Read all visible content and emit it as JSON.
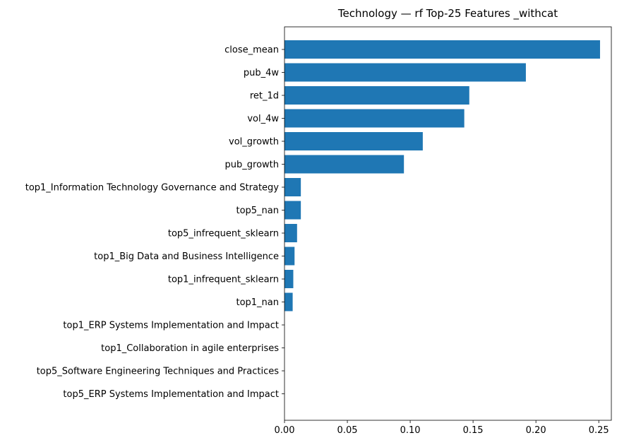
{
  "chart_data": {
    "type": "bar",
    "orientation": "horizontal",
    "title": "Technology — rf Top-25 Features _withcat",
    "xlabel": "",
    "ylabel": "",
    "xlim": [
      0,
      0.26
    ],
    "xticks": [
      0.0,
      0.05,
      0.1,
      0.15,
      0.2,
      0.25
    ],
    "xtick_labels": [
      "0.00",
      "0.05",
      "0.10",
      "0.15",
      "0.20",
      "0.25"
    ],
    "bar_color": "#1f77b4",
    "grid": false,
    "categories": [
      "close_mean",
      "pub_4w",
      "ret_1d",
      "vol_4w",
      "vol_growth",
      "pub_growth",
      "top1_Information Technology Governance and Strategy",
      "top5_nan",
      "top5_infrequent_sklearn",
      "top1_Big Data and Business Intelligence",
      "top1_infrequent_sklearn",
      "top1_nan",
      "top1_ERP Systems Implementation and Impact",
      "top1_Collaboration in agile enterprises",
      "top5_Software Engineering Techniques and Practices",
      "top5_ERP Systems Implementation and Impact"
    ],
    "values": [
      0.251,
      0.192,
      0.147,
      0.143,
      0.11,
      0.095,
      0.013,
      0.013,
      0.01,
      0.008,
      0.007,
      0.0065,
      0.0,
      0.0,
      0.0,
      0.0
    ]
  }
}
